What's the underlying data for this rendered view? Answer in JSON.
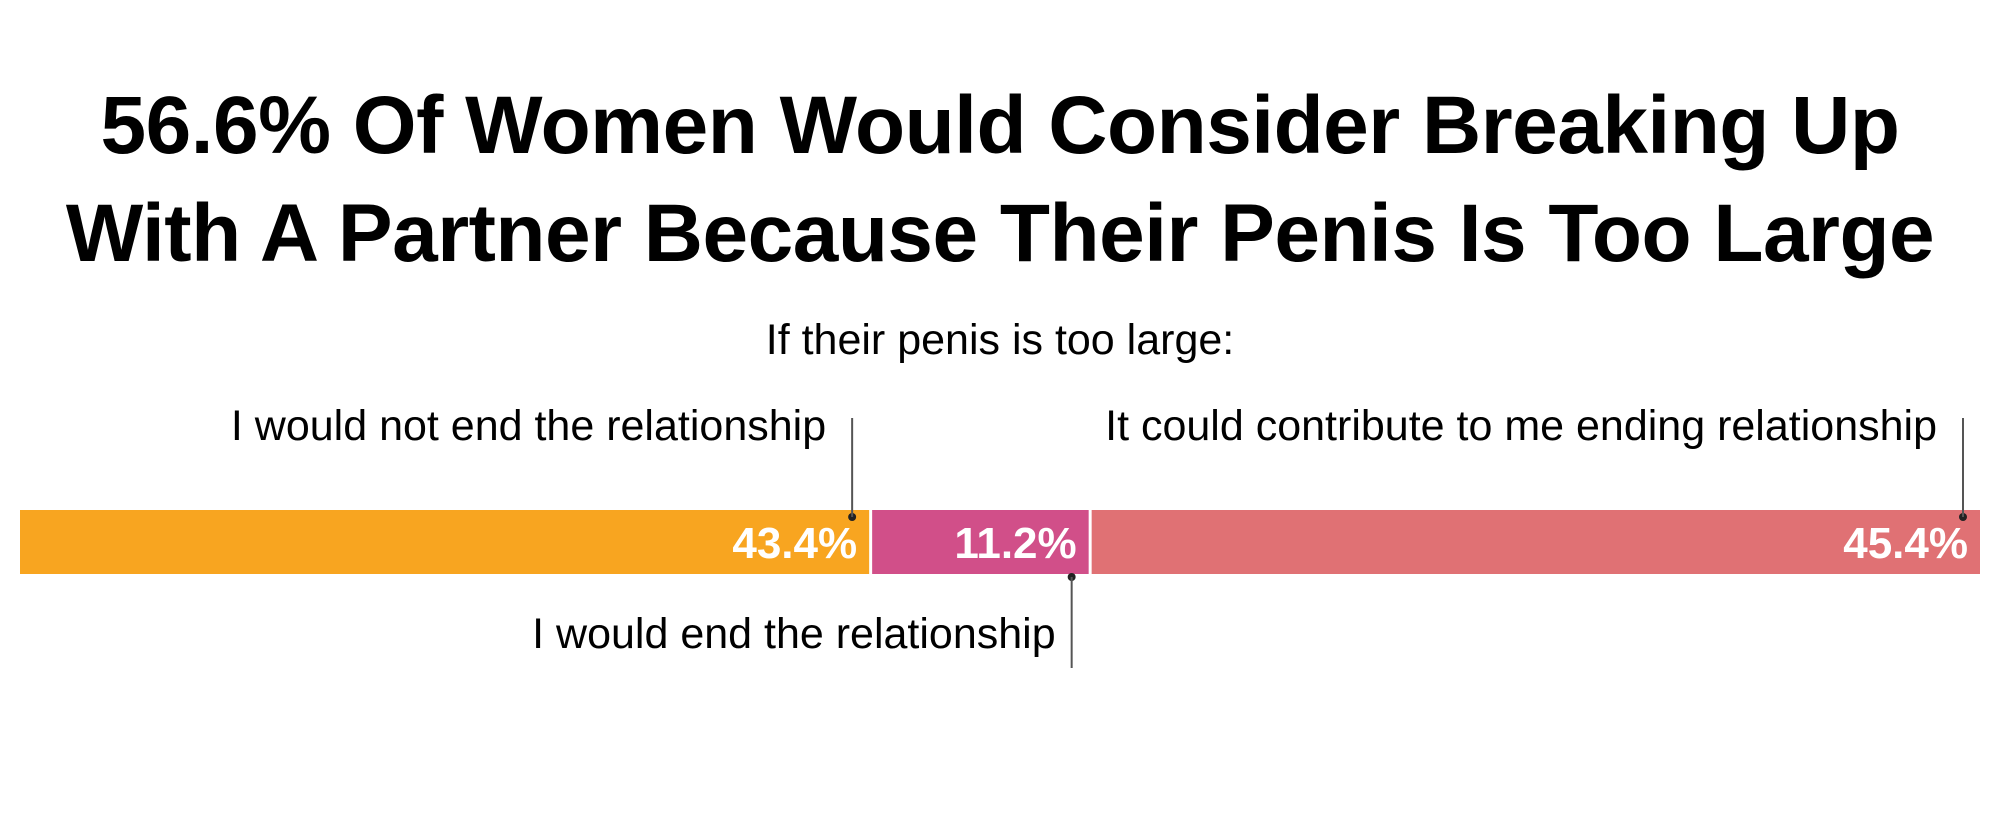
{
  "chart_data": {
    "type": "bar",
    "orientation": "horizontal-stacked",
    "title": [
      "56.6% Of Women Would Consider Breaking Up",
      "With A Partner Because Their Penis Is Too Large"
    ],
    "subtitle": "If their penis is too large:",
    "categories": [
      "I would not end the relationship",
      "I would end the relationship",
      "It could contribute to me ending relationship"
    ],
    "values": [
      43.4,
      11.2,
      45.4
    ],
    "value_labels": [
      "43.4%",
      "11.2%",
      "45.4%"
    ],
    "colors": [
      "#F8A520",
      "#D14F89",
      "#E07174"
    ],
    "label_placement": [
      "above",
      "below",
      "above"
    ],
    "total": 100
  }
}
